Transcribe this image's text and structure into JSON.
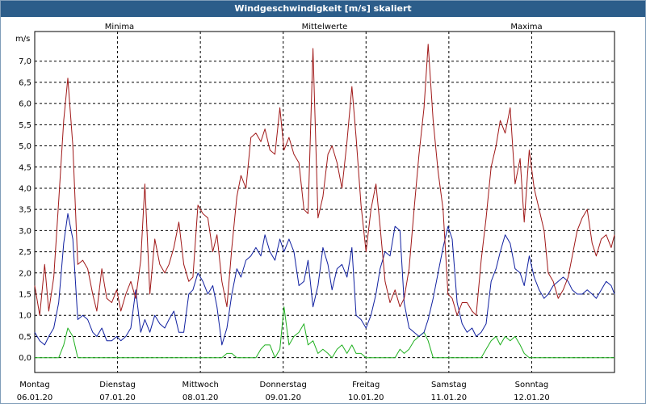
{
  "window": {
    "title": "Windgeschwindigkeit [m/s] skaliert"
  },
  "chart_data": {
    "type": "line",
    "title": "Windgeschwindigkeit [m/s] skaliert",
    "ylabel": "m/s",
    "ylim": [
      -0.35,
      7.7
    ],
    "xlim": [
      0,
      7
    ],
    "yticks": [
      "0,0",
      "0,5",
      "1,0",
      "1,5",
      "2,0",
      "2,5",
      "3,0",
      "3,5",
      "4,0",
      "4,5",
      "5,0",
      "5,5",
      "6,0",
      "6,5",
      "7,0"
    ],
    "days": [
      {
        "day": "Montag",
        "date": "06.01.20"
      },
      {
        "day": "Dienstag",
        "date": "07.01.20"
      },
      {
        "day": "Mittwoch",
        "date": "08.01.20"
      },
      {
        "day": "Donnerstag",
        "date": "09.01.20"
      },
      {
        "day": "Freitag",
        "date": "10.01.20"
      },
      {
        "day": "Samstag",
        "date": "11.01.20"
      },
      {
        "day": "Sonntag",
        "date": "12.01.20"
      }
    ],
    "grid": true,
    "series": [
      {
        "name": "Maxima",
        "color": "#a01818",
        "x": [
          0,
          0.06,
          0.12,
          0.17,
          0.23,
          0.29,
          0.35,
          0.4,
          0.46,
          0.52,
          0.58,
          0.64,
          0.7,
          0.75,
          0.81,
          0.87,
          0.93,
          0.99,
          1.04,
          1.1,
          1.16,
          1.22,
          1.28,
          1.33,
          1.39,
          1.45,
          1.51,
          1.57,
          1.62,
          1.68,
          1.74,
          1.8,
          1.86,
          1.91,
          1.97,
          2.03,
          2.09,
          2.15,
          2.2,
          2.26,
          2.32,
          2.38,
          2.44,
          2.49,
          2.55,
          2.61,
          2.67,
          2.73,
          2.78,
          2.84,
          2.9,
          2.96,
          3.01,
          3.07,
          3.13,
          3.19,
          3.25,
          3.3,
          3.36,
          3.42,
          3.48,
          3.54,
          3.59,
          3.65,
          3.71,
          3.77,
          3.83,
          3.88,
          3.94,
          4,
          4.06,
          4.12,
          4.17,
          4.23,
          4.29,
          4.35,
          4.41,
          4.46,
          4.52,
          4.58,
          4.64,
          4.7,
          4.75,
          4.81,
          4.87,
          4.93,
          4.99,
          5.04,
          5.1,
          5.16,
          5.22,
          5.28,
          5.33,
          5.39,
          5.45,
          5.51,
          5.57,
          5.62,
          5.68,
          5.74,
          5.8,
          5.86,
          5.91,
          5.97,
          6.03,
          6.09,
          6.15,
          6.2,
          6.26,
          6.32,
          6.38,
          6.44,
          6.49,
          6.55,
          6.61,
          6.67,
          6.73,
          6.78,
          6.84,
          6.9,
          6.96,
          7
        ],
        "values": [
          1.7,
          1.0,
          2.2,
          1.1,
          1.9,
          3.7,
          5.6,
          6.6,
          5.0,
          2.2,
          2.3,
          2.1,
          1.5,
          1.1,
          2.1,
          1.4,
          1.3,
          1.6,
          1.1,
          1.5,
          1.8,
          1.4,
          2.3,
          4.1,
          1.5,
          2.8,
          2.2,
          2.0,
          2.2,
          2.6,
          3.2,
          2.2,
          1.8,
          1.9,
          3.6,
          3.4,
          3.3,
          2.5,
          2.9,
          1.8,
          1.2,
          2.6,
          3.8,
          4.3,
          4.0,
          5.2,
          5.3,
          5.1,
          5.4,
          4.9,
          4.8,
          5.9,
          4.9,
          5.2,
          4.8,
          4.6,
          3.5,
          3.4,
          7.3,
          3.3,
          3.8,
          4.8,
          5.0,
          4.6,
          4.0,
          5.1,
          6.4,
          5.2,
          3.6,
          2.5,
          3.5,
          4.1,
          3.1,
          1.8,
          1.3,
          1.6,
          1.2,
          1.4,
          2.1,
          3.5,
          4.8,
          5.9,
          7.4,
          5.6,
          4.4,
          3.5,
          1.5,
          1.4,
          1.0,
          1.3,
          1.3,
          1.1,
          1.0,
          2.3,
          3.3,
          4.5,
          5.0,
          5.6,
          5.3,
          5.9,
          4.1,
          4.7,
          3.2,
          4.9,
          4.0,
          3.5,
          3.0,
          2.0,
          1.8,
          1.4,
          1.6,
          1.9,
          2.4,
          3.0,
          3.3,
          3.5,
          2.7,
          2.4,
          2.8,
          2.9,
          2.6,
          2.9
        ],
        "values_note_days": "(editor note removed)"
      },
      {
        "name": "Mittelwerte",
        "color": "#1020a0",
        "x": [
          0,
          0.06,
          0.12,
          0.17,
          0.23,
          0.29,
          0.35,
          0.4,
          0.46,
          0.52,
          0.58,
          0.64,
          0.7,
          0.75,
          0.81,
          0.87,
          0.93,
          0.99,
          1.04,
          1.1,
          1.16,
          1.22,
          1.28,
          1.33,
          1.39,
          1.45,
          1.51,
          1.57,
          1.62,
          1.68,
          1.74,
          1.8,
          1.86,
          1.91,
          1.97,
          2.03,
          2.09,
          2.15,
          2.2,
          2.26,
          2.32,
          2.38,
          2.44,
          2.49,
          2.55,
          2.61,
          2.67,
          2.73,
          2.78,
          2.84,
          2.9,
          2.96,
          3.01,
          3.07,
          3.13,
          3.19,
          3.25,
          3.3,
          3.36,
          3.42,
          3.48,
          3.54,
          3.59,
          3.65,
          3.71,
          3.77,
          3.83,
          3.88,
          3.94,
          4,
          4.06,
          4.12,
          4.17,
          4.23,
          4.29,
          4.35,
          4.41,
          4.46,
          4.52,
          4.58,
          4.64,
          4.7,
          4.75,
          4.81,
          4.87,
          4.93,
          4.99,
          5.04,
          5.1,
          5.16,
          5.22,
          5.28,
          5.33,
          5.39,
          5.45,
          5.51,
          5.57,
          5.62,
          5.68,
          5.74,
          5.8,
          5.86,
          5.91,
          5.97,
          6.03,
          6.09,
          6.15,
          6.2,
          6.26,
          6.32,
          6.38,
          6.44,
          6.49,
          6.55,
          6.61,
          6.67,
          6.73,
          6.78,
          6.84,
          6.9,
          6.96,
          7
        ],
        "values": [
          0.6,
          0.4,
          0.3,
          0.5,
          0.7,
          1.3,
          2.7,
          3.4,
          2.8,
          0.9,
          1.0,
          0.9,
          0.6,
          0.5,
          0.7,
          0.4,
          0.4,
          0.5,
          0.4,
          0.5,
          0.7,
          1.6,
          0.6,
          0.9,
          0.6,
          1.0,
          0.8,
          0.7,
          0.9,
          1.1,
          0.6,
          0.6,
          1.5,
          1.6,
          2.0,
          1.8,
          1.5,
          1.7,
          1.2,
          0.3,
          0.7,
          1.5,
          2.1,
          1.9,
          2.3,
          2.4,
          2.6,
          2.4,
          2.9,
          2.5,
          2.3,
          2.8,
          2.5,
          2.8,
          2.5,
          1.7,
          1.8,
          2.3,
          1.2,
          1.7,
          2.6,
          2.2,
          1.6,
          2.1,
          2.2,
          1.9,
          2.6,
          1.0,
          0.9,
          0.7,
          1.0,
          1.5,
          2.1,
          2.5,
          2.4,
          3.1,
          3.0,
          1.3,
          0.7,
          0.6,
          0.5,
          0.6,
          0.9,
          1.4,
          2.0,
          2.6,
          3.1,
          2.8,
          1.3,
          0.8,
          0.6,
          0.7,
          0.5,
          0.6,
          0.8,
          1.8,
          2.1,
          2.5,
          2.9,
          2.7,
          2.1,
          2.0,
          1.7,
          2.4,
          1.9,
          1.6,
          1.4,
          1.5,
          1.7,
          1.8,
          1.9,
          1.8,
          1.6,
          1.5,
          1.5,
          1.6,
          1.5,
          1.4,
          1.6,
          1.8,
          1.7,
          1.5
        ],
        "values_note_days": "(editor note removed)"
      },
      {
        "name": "Minima",
        "color": "#20b020",
        "x": [
          0,
          0.06,
          0.12,
          0.17,
          0.23,
          0.29,
          0.35,
          0.4,
          0.46,
          0.52,
          0.58,
          0.64,
          0.7,
          0.75,
          0.81,
          0.87,
          0.93,
          0.99,
          1.04,
          1.1,
          1.16,
          1.22,
          1.28,
          1.33,
          1.39,
          1.45,
          1.51,
          1.57,
          1.62,
          1.68,
          1.74,
          1.8,
          1.86,
          1.91,
          1.97,
          2.03,
          2.09,
          2.15,
          2.2,
          2.26,
          2.32,
          2.38,
          2.44,
          2.49,
          2.55,
          2.61,
          2.67,
          2.73,
          2.78,
          2.84,
          2.9,
          2.96,
          3.01,
          3.07,
          3.13,
          3.19,
          3.25,
          3.3,
          3.36,
          3.42,
          3.48,
          3.54,
          3.59,
          3.65,
          3.71,
          3.77,
          3.83,
          3.88,
          3.94,
          4,
          4.06,
          4.12,
          4.17,
          4.23,
          4.29,
          4.35,
          4.41,
          4.46,
          4.52,
          4.58,
          4.64,
          4.7,
          4.75,
          4.81,
          4.87,
          4.93,
          4.99,
          5.04,
          5.1,
          5.16,
          5.22,
          5.28,
          5.33,
          5.39,
          5.45,
          5.51,
          5.57,
          5.62,
          5.68,
          5.74,
          5.8,
          5.86,
          5.91,
          5.97,
          6.03,
          6.09,
          6.15,
          6.2,
          6.26,
          6.32,
          6.38,
          6.44,
          6.49,
          6.55,
          6.61,
          6.67,
          6.73,
          6.78,
          6.84,
          6.9,
          6.96,
          7
        ],
        "values": [
          0,
          0,
          0,
          0,
          0,
          0,
          0.3,
          0.7,
          0.5,
          0,
          0,
          0,
          0,
          0,
          0,
          0,
          0,
          0,
          0,
          0,
          0,
          0,
          0,
          0,
          0,
          0,
          0,
          0,
          0,
          0,
          0,
          0,
          0,
          0,
          0,
          0,
          0,
          0,
          0,
          0,
          0.1,
          0.1,
          0,
          0,
          0,
          0,
          0,
          0.2,
          0.3,
          0.3,
          0,
          0.2,
          1.2,
          0.3,
          0.5,
          0.6,
          0.8,
          0.3,
          0.4,
          0.1,
          0.2,
          0.1,
          0,
          0.2,
          0.3,
          0.1,
          0.3,
          0.1,
          0.1,
          0,
          0,
          0,
          0,
          0,
          0,
          0,
          0.2,
          0.1,
          0.2,
          0.4,
          0.5,
          0.6,
          0.4,
          0,
          0,
          0,
          0,
          0,
          0,
          0,
          0,
          0,
          0,
          0,
          0.2,
          0.4,
          0.5,
          0.3,
          0.5,
          0.4,
          0.5,
          0.3,
          0.1,
          0,
          0,
          0,
          0,
          0,
          0,
          0,
          0,
          0,
          0,
          0,
          0,
          0,
          0,
          0,
          0,
          0,
          0,
          0
        ],
        "values_note_days": "(editor note removed)"
      }
    ]
  }
}
